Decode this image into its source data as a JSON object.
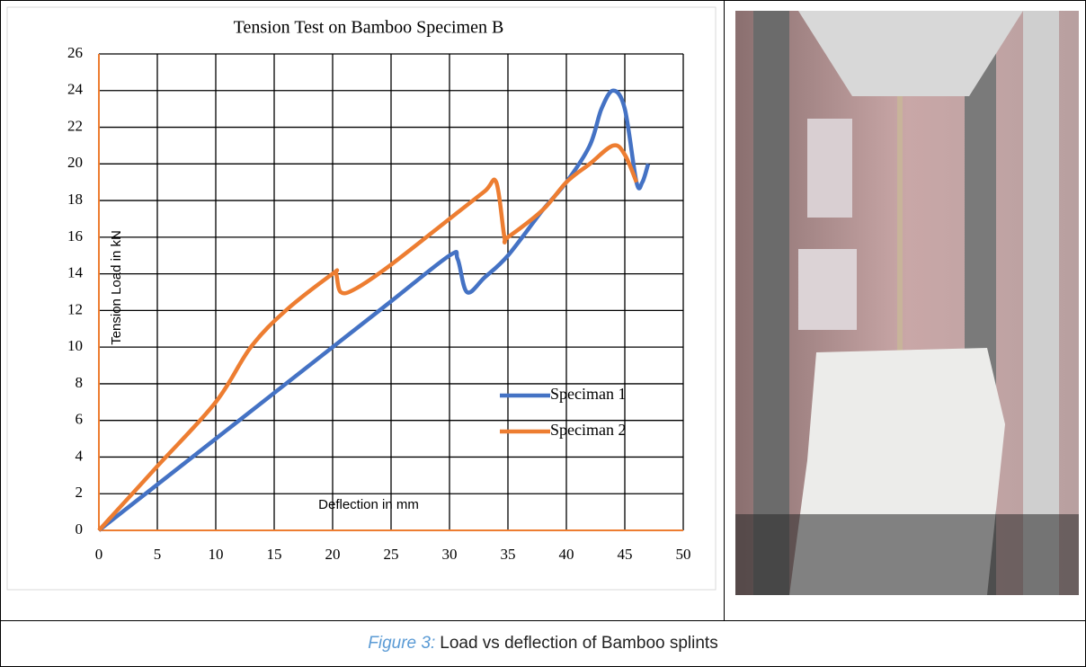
{
  "chart_data": {
    "type": "line",
    "title": "Tension Test on Bamboo Specimen B",
    "x_label": "Deflection in mm",
    "y_label": "Tension Load in kN",
    "xlim": [
      0,
      50
    ],
    "xticks": [
      0,
      5,
      10,
      15,
      20,
      25,
      30,
      35,
      40,
      45,
      50
    ],
    "ylim": [
      0,
      26
    ],
    "yticks": [
      0,
      2,
      4,
      6,
      8,
      10,
      12,
      14,
      16,
      18,
      20,
      22,
      24,
      26
    ],
    "grid": true,
    "legend": "right",
    "series": [
      {
        "name": "Speciman 1",
        "color": "#4472c4",
        "x": [
          0,
          10,
          20,
          25,
          30,
          30.7,
          31.5,
          33,
          35,
          38,
          40,
          42,
          43,
          44,
          45,
          46,
          46.5,
          47
        ],
        "values": [
          0,
          5,
          10,
          12.5,
          15,
          14.8,
          13,
          13.8,
          15,
          17.5,
          19,
          21,
          23,
          24,
          23,
          19,
          19,
          20
        ]
      },
      {
        "name": "Speciman 2",
        "color": "#ed7d31",
        "x": [
          0,
          5,
          10,
          13,
          16,
          20,
          20.3,
          20.7,
          22,
          25,
          30,
          33,
          34,
          34.7,
          35,
          38,
          40,
          42,
          44,
          45,
          46
        ],
        "values": [
          0,
          3.5,
          7,
          10,
          12,
          14,
          14,
          13,
          13.2,
          14.5,
          17,
          18.5,
          19,
          16,
          16,
          17.5,
          19,
          20,
          21,
          20.5,
          19
        ]
      }
    ]
  },
  "figure_caption": {
    "label": "Figure 3:",
    "text": "Load vs deflection of Bamboo splints"
  }
}
